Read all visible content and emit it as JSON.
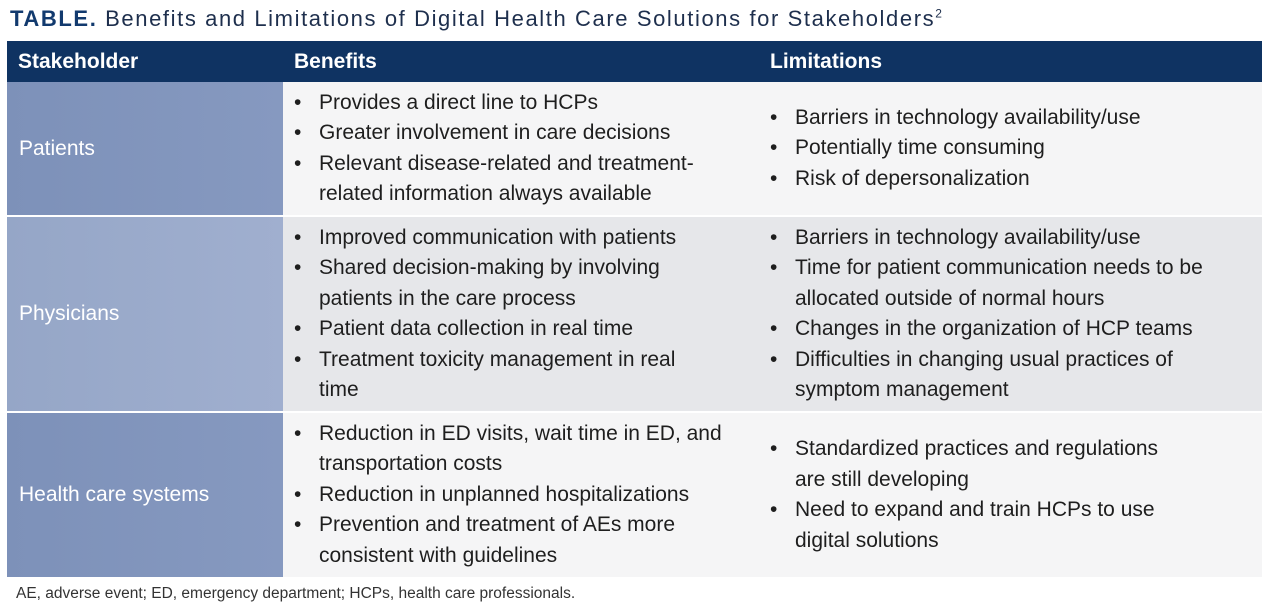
{
  "title": {
    "lead": "TABLE.",
    "text": "Benefits and Limitations of Digital Health Care Solutions for Stakeholders",
    "ref": "2"
  },
  "table": {
    "headers": [
      "Stakeholder",
      "Benefits",
      "Limitations"
    ],
    "bullet": "•",
    "rows": [
      {
        "stakeholder": "Patients",
        "benefits": [
          "Provides a direct line to HCPs",
          "Greater involvement in care decisions",
          "Relevant disease-related and treatment-related information always available"
        ],
        "limitations": [
          "Barriers in technology availability/use",
          "Potentially time consuming",
          "Risk of depersonalization"
        ]
      },
      {
        "stakeholder": "Physicians",
        "benefits": [
          "Improved communication with patients",
          "Shared decision-making by involving patients in the care process",
          "Patient data collection in real time",
          "Treatment toxicity management in real time"
        ],
        "limitations": [
          "Barriers in technology availability/use",
          "Time for patient communication needs to be allocated outside of normal hours",
          "Changes in the organization of HCP teams",
          "Difficulties in changing usual practices of symptom management"
        ]
      },
      {
        "stakeholder": "Health care systems",
        "benefits": [
          "Reduction in ED visits, wait time in ED, and transportation costs",
          "Reduction in unplanned hospitalizations",
          "Prevention and treatment of AEs more consistent with guidelines"
        ],
        "limitations": [
          "Standardized practices and regulations are still developing",
          "Need to expand and train HCPs to use digital solutions"
        ]
      }
    ]
  },
  "footnote": "AE, adverse event; ED, emergency department; HCPs, health care professionals."
}
